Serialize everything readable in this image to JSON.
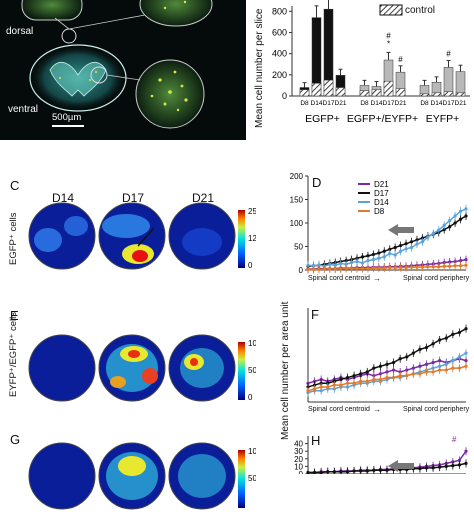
{
  "panelA": {
    "dorsal": "dorsal",
    "ventral": "ventral",
    "scale_bar": "500µm"
  },
  "panelB": {
    "legend_control": "control",
    "ylabel": "Mean cell number per slice",
    "yticks": [
      0,
      200,
      400,
      600,
      800
    ],
    "groups": [
      "EGFP+",
      "EGFP+/EYFP+",
      "EYFP+"
    ],
    "bar_labels": [
      [
        "D8",
        "D14",
        "D17",
        "D21"
      ],
      [
        "D8",
        "D14",
        "D17",
        "D21"
      ],
      [
        "D8",
        "D14",
        "D17",
        "D21"
      ]
    ],
    "colors": {
      "dark": "#111111",
      "gray": "#aaaaaa",
      "line": "#333333"
    }
  },
  "heatmaps": {
    "days": [
      "D14",
      "D17",
      "D21"
    ],
    "rows": [
      {
        "letter": "C",
        "ylabel": "EGFP⁺ cells",
        "ticks": [
          "250",
          "125",
          "0"
        ]
      },
      {
        "letter": "E",
        "ylabel": "EYFP⁺/EGFP⁺ cells",
        "ticks": [
          "100",
          "50",
          "0"
        ]
      },
      {
        "letter": "G",
        "ylabel": "",
        "ticks": [
          "100",
          "50"
        ]
      }
    ]
  },
  "lineplots": {
    "shared_ylabel": "Mean cell number per area unit",
    "xlabel_left": "Spinal cord centroid",
    "xlabel_arrow": "→",
    "xlabel_right": "Spinal cord periphery"
  },
  "chart_data": [
    {
      "type": "bar",
      "panel": "B",
      "categories": [
        "D8",
        "D14",
        "D17",
        "D21",
        "D8",
        "D14",
        "D17",
        "D21",
        "D8",
        "D14",
        "D17",
        "D21"
      ],
      "groups": [
        "EGFP+",
        "EGFP+/EYFP+",
        "EYFP+"
      ],
      "ylabel": "Mean cell number per slice",
      "ylim": [
        0,
        850
      ],
      "series": [
        {
          "values": [
            80,
            740,
            820,
            195,
            100,
            90,
            340,
            225,
            100,
            130,
            270,
            230
          ]
        },
        {
          "values": [
            60,
            120,
            150,
            80,
            50,
            60,
            140,
            70,
            20,
            30,
            40,
            30
          ]
        }
      ],
      "annotations": [
        "*",
        "#",
        "#",
        "#"
      ]
    },
    {
      "type": "line",
      "panel": "D",
      "ylim": [
        0,
        200
      ],
      "yticks": [
        0,
        50,
        100,
        150,
        200
      ],
      "x": [
        1,
        2,
        3,
        4,
        5,
        6,
        7,
        8,
        9,
        10,
        11,
        12,
        13,
        14,
        15,
        16,
        17,
        18,
        19,
        20,
        21,
        22,
        23,
        24,
        25,
        26,
        27,
        28,
        29,
        30
      ],
      "series": [
        {
          "name": "D21",
          "color": "#7b2aa5",
          "values": [
            2,
            2,
            3,
            3,
            3,
            3,
            4,
            4,
            4,
            5,
            5,
            5,
            6,
            6,
            6,
            7,
            7,
            8,
            8,
            9,
            10,
            11,
            12,
            13,
            14,
            16,
            17,
            18,
            20,
            22
          ]
        },
        {
          "name": "D17",
          "color": "#111111",
          "values": [
            8,
            9,
            10,
            12,
            14,
            16,
            18,
            20,
            22,
            25,
            28,
            30,
            33,
            36,
            40,
            44,
            48,
            52,
            56,
            60,
            64,
            68,
            72,
            76,
            80,
            86,
            92,
            100,
            108,
            115
          ]
        },
        {
          "name": "D14",
          "color": "#5ba3dc",
          "values": [
            10,
            9,
            11,
            8,
            12,
            10,
            14,
            12,
            16,
            18,
            15,
            20,
            22,
            25,
            28,
            35,
            32,
            40,
            45,
            48,
            55,
            60,
            70,
            78,
            85,
            95,
            105,
            115,
            125,
            130
          ]
        },
        {
          "name": "D8",
          "color": "#e07a2a",
          "values": [
            1,
            1,
            1,
            2,
            2,
            2,
            2,
            3,
            3,
            3,
            3,
            3,
            4,
            4,
            4,
            5,
            5,
            5,
            5,
            6,
            6,
            6,
            7,
            7,
            7,
            8,
            8,
            9,
            9,
            10
          ]
        }
      ],
      "legend": "top-left"
    },
    {
      "type": "line",
      "panel": "F",
      "ylim": [
        0,
        50
      ],
      "x": [
        1,
        2,
        3,
        4,
        5,
        6,
        7,
        8,
        9,
        10,
        11,
        12,
        13,
        14,
        15,
        16,
        17,
        18,
        19,
        20,
        21,
        22,
        23,
        24,
        25
      ],
      "series": [
        {
          "color": "#7b2aa5",
          "values": [
            10,
            11,
            12,
            11,
            12,
            13,
            12,
            13,
            14,
            15,
            14,
            15,
            16,
            17,
            16,
            17,
            18,
            19,
            20,
            21,
            22,
            21,
            22,
            23,
            22
          ]
        },
        {
          "color": "#111111",
          "values": [
            8,
            9,
            10,
            10,
            11,
            12,
            13,
            14,
            15,
            16,
            18,
            19,
            20,
            21,
            23,
            24,
            26,
            28,
            29,
            31,
            33,
            34,
            36,
            37,
            39
          ]
        },
        {
          "color": "#5ba3dc",
          "values": [
            5,
            6,
            6,
            7,
            7,
            8,
            8,
            9,
            10,
            10,
            11,
            11,
            12,
            13,
            13,
            14,
            15,
            16,
            17,
            18,
            19,
            20,
            22,
            24,
            26
          ]
        },
        {
          "color": "#e07a2a",
          "values": [
            6,
            7,
            8,
            8,
            9,
            9,
            10,
            10,
            11,
            11,
            12,
            12,
            13,
            13,
            14,
            14,
            15,
            15,
            16,
            16,
            17,
            17,
            18,
            18,
            19
          ]
        }
      ]
    },
    {
      "type": "line",
      "panel": "H",
      "ylim": [
        0,
        50
      ],
      "yticks": [
        0,
        10,
        20,
        30,
        40
      ],
      "annotations": [
        "#"
      ],
      "x": [
        1,
        2,
        3,
        4,
        5,
        6,
        7,
        8,
        9,
        10,
        11,
        12,
        13,
        14,
        15,
        16,
        17,
        18,
        19,
        20,
        21,
        22,
        23,
        24,
        25
      ],
      "series": [
        {
          "color": "#7b2aa5",
          "values": [
            2,
            2,
            3,
            3,
            3,
            4,
            4,
            4,
            5,
            5,
            5,
            6,
            6,
            7,
            7,
            8,
            8,
            9,
            10,
            11,
            12,
            14,
            16,
            18,
            30
          ]
        },
        {
          "color": "#111111",
          "values": [
            2,
            2,
            2,
            3,
            3,
            3,
            3,
            4,
            4,
            4,
            5,
            5,
            5,
            6,
            6,
            6,
            7,
            7,
            8,
            8,
            9,
            10,
            11,
            12,
            14
          ]
        }
      ]
    }
  ]
}
